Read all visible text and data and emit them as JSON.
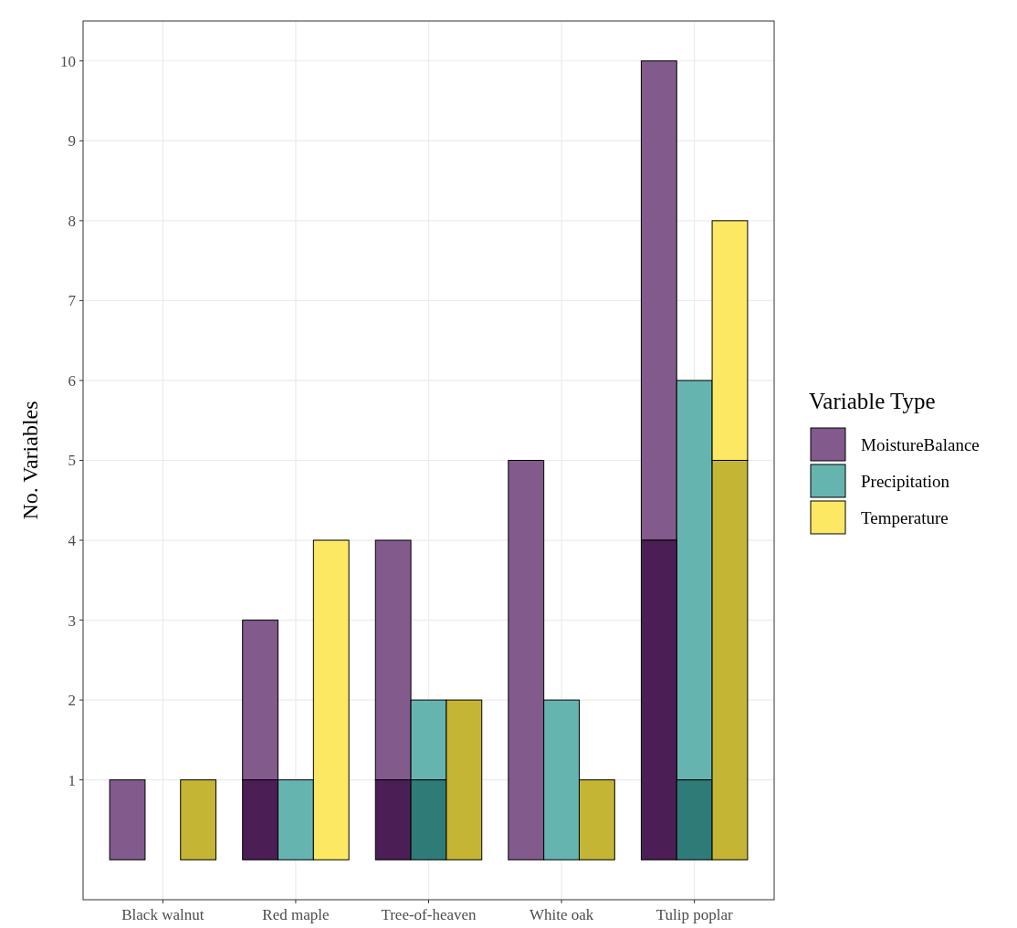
{
  "chart_data": {
    "type": "bar",
    "ylabel": "No. Variables",
    "legend_title": "Variable Type",
    "categories": [
      "Black walnut",
      "Red maple",
      "Tree-of-heaven",
      "White oak",
      "Tulip poplar"
    ],
    "series": [
      {
        "name": "MoistureBalance",
        "color": "#825a8c",
        "values": [
          1,
          2,
          3,
          5,
          6
        ],
        "base": [
          0,
          1,
          1,
          0,
          4
        ]
      },
      {
        "name": "Precipitation",
        "color": "#66b4b0",
        "values": [
          0,
          1,
          1,
          2,
          5
        ],
        "base": [
          null,
          0,
          1,
          0,
          1
        ]
      },
      {
        "name": "Temperature",
        "color": "#fde864",
        "values": [
          0,
          4,
          0,
          0,
          3
        ],
        "base": [
          null,
          0,
          null,
          null,
          5
        ]
      },
      {
        "color": "#4b1f55",
        "values": [
          0,
          1,
          1,
          0,
          4
        ]
      },
      {
        "color": "#2f7b78",
        "values": [
          0,
          0,
          1,
          0,
          1
        ]
      },
      {
        "color": "#c4b535",
        "values": [
          1,
          0,
          2,
          1,
          5
        ]
      }
    ],
    "ylim": [
      -0.5,
      10.5
    ],
    "yticks": [
      1,
      2,
      3,
      4,
      5,
      6,
      7,
      8,
      9,
      10
    ],
    "grid": true,
    "legend": "right"
  }
}
